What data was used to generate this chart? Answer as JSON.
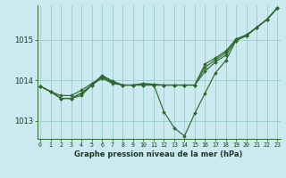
{
  "title": "Graphe pression niveau de la mer (hPa)",
  "bg_color": "#cce8f0",
  "grid_color": "#99cccc",
  "line_color": "#2d6b2d",
  "marker_color": "#2d6b2d",
  "x_labels": [
    "0",
    "1",
    "2",
    "3",
    "4",
    "5",
    "6",
    "7",
    "8",
    "9",
    "10",
    "11",
    "12",
    "13",
    "14",
    "15",
    "16",
    "17",
    "18",
    "19",
    "20",
    "21",
    "22",
    "23"
  ],
  "yticks": [
    1013,
    1014,
    1015
  ],
  "ylim": [
    1012.55,
    1015.85
  ],
  "xlim": [
    -0.3,
    23.3
  ],
  "series": [
    [
      1013.85,
      1013.72,
      1013.62,
      1013.62,
      1013.75,
      1013.92,
      1014.08,
      1013.95,
      1013.88,
      1013.88,
      1013.9,
      1013.9,
      1013.88,
      1013.88,
      1013.88,
      1013.88,
      1014.4,
      1014.55,
      1014.72,
      1015.0,
      1015.1,
      1015.3,
      1015.5,
      1015.78
    ],
    [
      1013.85,
      1013.72,
      1013.55,
      1013.55,
      1013.62,
      1013.88,
      1014.12,
      1013.98,
      1013.88,
      1013.88,
      1013.92,
      1013.9,
      1013.22,
      1012.82,
      1012.62,
      1013.18,
      1013.68,
      1014.18,
      1014.48,
      1014.98,
      1015.1,
      1015.3,
      1015.5,
      1015.78
    ],
    [
      1013.85,
      1013.72,
      1013.55,
      1013.55,
      1013.68,
      1013.88,
      1014.05,
      1013.92,
      1013.88,
      1013.88,
      1013.88,
      1013.88,
      1013.88,
      1013.88,
      1013.88,
      1013.88,
      1014.22,
      1014.45,
      1014.62,
      1014.98,
      1015.1,
      1015.3,
      1015.5,
      1015.78
    ],
    [
      1013.85,
      1013.72,
      1013.55,
      1013.55,
      1013.68,
      1013.88,
      1014.1,
      1013.95,
      1013.88,
      1013.88,
      1013.88,
      1013.88,
      1013.88,
      1013.88,
      1013.88,
      1013.88,
      1014.32,
      1014.5,
      1014.68,
      1015.02,
      1015.12,
      1015.3,
      1015.5,
      1015.78
    ]
  ]
}
